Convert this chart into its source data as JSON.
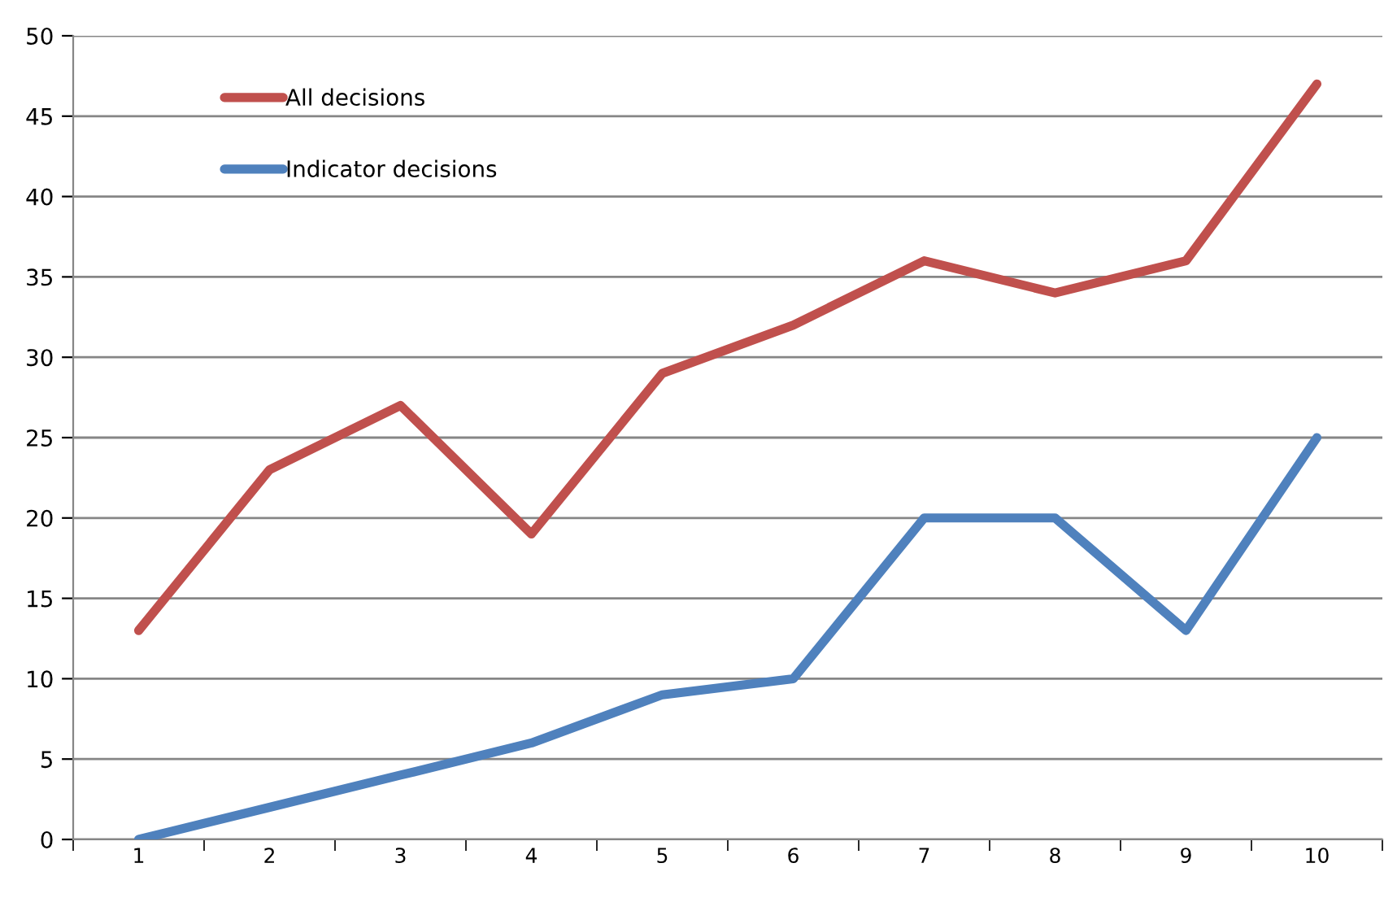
{
  "chart_data": {
    "type": "line",
    "categories": [
      "1",
      "2",
      "3",
      "4",
      "5",
      "6",
      "7",
      "8",
      "9",
      "10"
    ],
    "series": [
      {
        "name": "All decisions",
        "color": "#c0504d",
        "values": [
          13,
          23,
          27,
          19,
          29,
          32,
          36,
          34,
          36,
          47
        ]
      },
      {
        "name": "Indicator decisions",
        "color": "#4f81bd",
        "values": [
          0,
          2,
          4,
          6,
          9,
          10,
          20,
          20,
          13,
          25
        ]
      }
    ],
    "ylim": [
      0,
      50
    ],
    "yticks": [
      0,
      5,
      10,
      15,
      20,
      25,
      30,
      35,
      40,
      45,
      50
    ],
    "grid": "y",
    "legend": "top left",
    "marker": "none",
    "line_style": "solid"
  }
}
